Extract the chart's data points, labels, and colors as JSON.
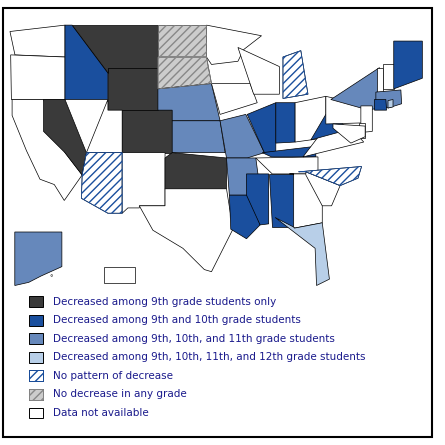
{
  "state_data": {
    "MT": "dark_gray",
    "WY": "dark_gray",
    "CO": "dark_gray",
    "OK": "dark_gray",
    "NV": "dark_gray",
    "ID": "dark_blue",
    "ME": "dark_blue",
    "CT": "dark_blue",
    "KY": "dark_blue",
    "WV": "dark_blue",
    "AL": "dark_blue",
    "MS": "dark_blue",
    "LA": "dark_blue",
    "IL": "dark_blue",
    "IN": "dark_blue",
    "NE": "medium_blue",
    "KS": "medium_blue",
    "MO": "medium_blue",
    "AR": "medium_blue",
    "NY": "medium_blue",
    "MA": "medium_blue",
    "AK": "medium_blue",
    "FL": "light_blue",
    "RI": "light_blue",
    "AZ": "blue_hatch",
    "MI": "blue_hatch",
    "NC": "blue_hatch",
    "ND": "gray_hatch",
    "SD": "gray_hatch",
    "WA": "white",
    "OR": "white",
    "CA": "white",
    "UT": "white",
    "NM": "white",
    "TX": "white",
    "MN": "white",
    "IA": "white",
    "WI": "white",
    "OH": "white",
    "PA": "white",
    "NJ": "white",
    "DE": "white",
    "MD": "white",
    "VA": "white",
    "SC": "white",
    "GA": "white",
    "TN": "white",
    "NH": "white",
    "VT": "white",
    "HI": "white",
    "PR": "white"
  },
  "cat_colors": {
    "dark_gray": "#3a3a3a",
    "dark_blue": "#1a4f9e",
    "medium_blue": "#6688bb",
    "light_blue": "#b8cfe8",
    "blue_hatch": "#ffffff",
    "gray_hatch": "#cccccc",
    "white": "#ffffff"
  },
  "cat_hatch": {
    "dark_gray": null,
    "dark_blue": null,
    "medium_blue": null,
    "light_blue": null,
    "blue_hatch": "////",
    "gray_hatch": "////",
    "white": null
  },
  "cat_hatch_color": {
    "dark_gray": "black",
    "dark_blue": "black",
    "medium_blue": "black",
    "light_blue": "black",
    "blue_hatch": "#1a4f9e",
    "gray_hatch": "#888888",
    "white": "black"
  },
  "legend_items": [
    {
      "cat": "dark_gray",
      "label": "Decreased among 9th grade students only"
    },
    {
      "cat": "dark_blue",
      "label": "Decreased among 9th and 10th grade students"
    },
    {
      "cat": "medium_blue",
      "label": "Decreased among 9th, 10th, and 11th grade students"
    },
    {
      "cat": "light_blue",
      "label": "Decreased among 9th, 10th, 11th, and 12th grade students"
    },
    {
      "cat": "blue_hatch",
      "label": "No pattern of decrease"
    },
    {
      "cat": "gray_hatch",
      "label": "No decrease in any grade"
    },
    {
      "cat": "white",
      "label": "Data not available"
    }
  ],
  "text_color": "#1a1a8c",
  "legend_fontsize": 7.5
}
